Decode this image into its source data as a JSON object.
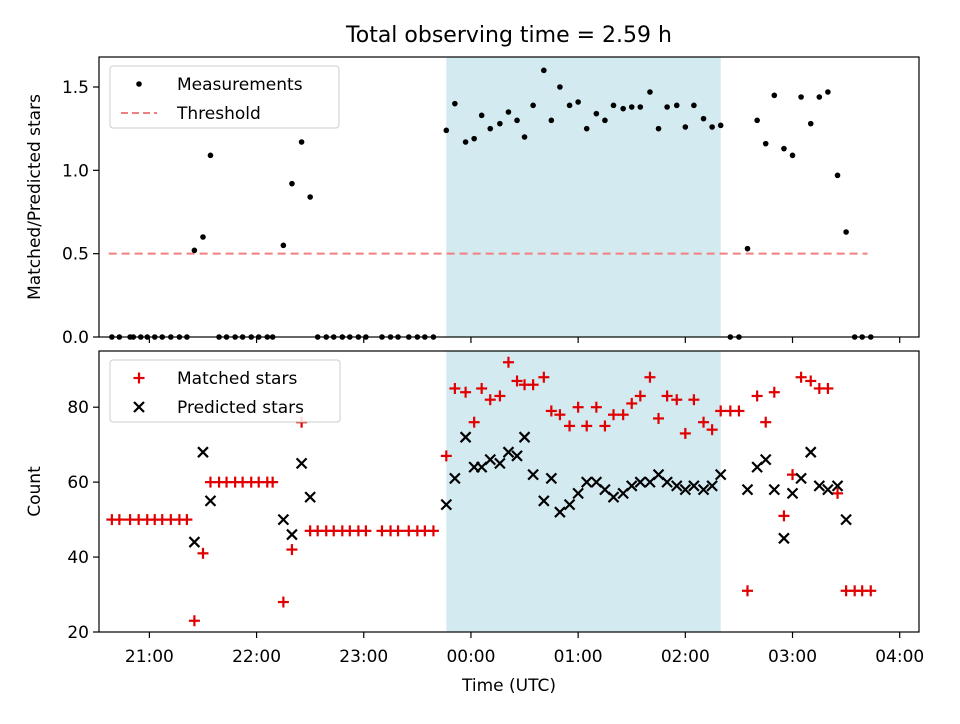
{
  "figure": {
    "title": "Total observing time = 2.59 h"
  },
  "chart_data": [
    {
      "type": "scatter",
      "ylabel": "Matched/Predicted stars",
      "xlabel": "",
      "xlim_hours": [
        20.53,
        28.18
      ],
      "ylim": [
        0,
        1.68
      ],
      "yticks": [
        0.0,
        0.5,
        1.0,
        1.5
      ],
      "yticklabels": [
        "0.0",
        "0.5",
        "1.0",
        "1.5"
      ],
      "shaded_span_hours": [
        23.77,
        26.33
      ],
      "shade_color": "#d4eaf1",
      "legend_location": "upper-left",
      "legend": [
        {
          "name": "Measurements",
          "marker": "dot",
          "color": "#000000"
        },
        {
          "name": "Threshold",
          "marker": "dashed-line",
          "color": "#f08080"
        }
      ],
      "threshold": {
        "value": 0.5,
        "x_hours": [
          20.62,
          27.7
        ],
        "color": "#f08080"
      },
      "series": [
        {
          "name": "Measurements",
          "color": "#000000",
          "points": [
            [
              20.65,
              0
            ],
            [
              20.72,
              0
            ],
            [
              20.82,
              0
            ],
            [
              20.85,
              0
            ],
            [
              20.92,
              0
            ],
            [
              20.98,
              0
            ],
            [
              21.05,
              0
            ],
            [
              21.12,
              0
            ],
            [
              21.2,
              0
            ],
            [
              21.28,
              0
            ],
            [
              21.35,
              0
            ],
            [
              21.42,
              0.52
            ],
            [
              21.5,
              0.6
            ],
            [
              21.57,
              1.09
            ],
            [
              21.65,
              0
            ],
            [
              21.72,
              0
            ],
            [
              21.8,
              0
            ],
            [
              21.87,
              0
            ],
            [
              21.95,
              0
            ],
            [
              22.02,
              0
            ],
            [
              22.1,
              0
            ],
            [
              22.15,
              0
            ],
            [
              22.25,
              0.55
            ],
            [
              22.33,
              0.92
            ],
            [
              22.42,
              1.17
            ],
            [
              22.5,
              0.84
            ],
            [
              22.57,
              0
            ],
            [
              22.65,
              0
            ],
            [
              22.72,
              0
            ],
            [
              22.8,
              0
            ],
            [
              22.87,
              0
            ],
            [
              22.95,
              0
            ],
            [
              23.02,
              0
            ],
            [
              23.17,
              0
            ],
            [
              23.25,
              0
            ],
            [
              23.32,
              0
            ],
            [
              23.42,
              0
            ],
            [
              23.5,
              0
            ],
            [
              23.57,
              0
            ],
            [
              23.65,
              0
            ],
            [
              23.77,
              1.24
            ],
            [
              23.85,
              1.4
            ],
            [
              23.95,
              1.17
            ],
            [
              24.03,
              1.19
            ],
            [
              24.1,
              1.33
            ],
            [
              24.18,
              1.25
            ],
            [
              24.27,
              1.28
            ],
            [
              24.35,
              1.35
            ],
            [
              24.43,
              1.3
            ],
            [
              24.5,
              1.2
            ],
            [
              24.58,
              1.39
            ],
            [
              24.68,
              1.6
            ],
            [
              24.75,
              1.3
            ],
            [
              24.83,
              1.5
            ],
            [
              24.92,
              1.39
            ],
            [
              25.0,
              1.41
            ],
            [
              25.08,
              1.25
            ],
            [
              25.17,
              1.34
            ],
            [
              25.25,
              1.3
            ],
            [
              25.33,
              1.39
            ],
            [
              25.42,
              1.37
            ],
            [
              25.5,
              1.38
            ],
            [
              25.58,
              1.38
            ],
            [
              25.67,
              1.47
            ],
            [
              25.75,
              1.25
            ],
            [
              25.83,
              1.38
            ],
            [
              25.92,
              1.39
            ],
            [
              26.0,
              1.26
            ],
            [
              26.08,
              1.39
            ],
            [
              26.17,
              1.31
            ],
            [
              26.25,
              1.26
            ],
            [
              26.33,
              1.27
            ],
            [
              26.42,
              0
            ],
            [
              26.5,
              0
            ],
            [
              26.58,
              0.53
            ],
            [
              26.67,
              1.3
            ],
            [
              26.75,
              1.16
            ],
            [
              26.83,
              1.45
            ],
            [
              26.92,
              1.13
            ],
            [
              27.0,
              1.09
            ],
            [
              27.08,
              1.44
            ],
            [
              27.17,
              1.28
            ],
            [
              27.25,
              1.44
            ],
            [
              27.33,
              1.47
            ],
            [
              27.42,
              0.97
            ],
            [
              27.5,
              0.63
            ],
            [
              27.58,
              0
            ],
            [
              27.65,
              0
            ],
            [
              27.73,
              0
            ]
          ]
        }
      ]
    },
    {
      "type": "scatter",
      "ylabel": "Count",
      "xlabel": "Time (UTC)",
      "xlim_hours": [
        20.53,
        28.18
      ],
      "ylim": [
        20,
        95
      ],
      "yticks": [
        20,
        40,
        60,
        80
      ],
      "yticklabels": [
        "20",
        "40",
        "60",
        "80"
      ],
      "xticks_hours": [
        21,
        22,
        23,
        24,
        25,
        26,
        27,
        28
      ],
      "xticklabels": [
        "21:00",
        "22:00",
        "23:00",
        "00:00",
        "01:00",
        "02:00",
        "03:00",
        "04:00"
      ],
      "shaded_span_hours": [
        23.77,
        26.33
      ],
      "shade_color": "#d4eaf1",
      "legend_location": "upper-left",
      "legend": [
        {
          "name": "Matched stars",
          "marker": "plus",
          "color": "#e00000"
        },
        {
          "name": "Predicted stars",
          "marker": "x",
          "color": "#000000"
        }
      ],
      "series": [
        {
          "name": "Matched stars",
          "marker": "plus",
          "color": "#e00000",
          "points": [
            [
              20.65,
              50
            ],
            [
              20.72,
              50
            ],
            [
              20.82,
              50
            ],
            [
              20.9,
              50
            ],
            [
              20.98,
              50
            ],
            [
              21.05,
              50
            ],
            [
              21.12,
              50
            ],
            [
              21.2,
              50
            ],
            [
              21.28,
              50
            ],
            [
              21.35,
              50
            ],
            [
              21.42,
              23
            ],
            [
              21.5,
              41
            ],
            [
              21.57,
              60
            ],
            [
              21.65,
              60
            ],
            [
              21.72,
              60
            ],
            [
              21.8,
              60
            ],
            [
              21.87,
              60
            ],
            [
              21.95,
              60
            ],
            [
              22.02,
              60
            ],
            [
              22.1,
              60
            ],
            [
              22.15,
              60
            ],
            [
              22.25,
              28
            ],
            [
              22.33,
              42
            ],
            [
              22.42,
              76
            ],
            [
              22.5,
              47
            ],
            [
              22.57,
              47
            ],
            [
              22.65,
              47
            ],
            [
              22.72,
              47
            ],
            [
              22.8,
              47
            ],
            [
              22.87,
              47
            ],
            [
              22.95,
              47
            ],
            [
              23.02,
              47
            ],
            [
              23.17,
              47
            ],
            [
              23.25,
              47
            ],
            [
              23.32,
              47
            ],
            [
              23.42,
              47
            ],
            [
              23.5,
              47
            ],
            [
              23.57,
              47
            ],
            [
              23.65,
              47
            ],
            [
              23.77,
              67
            ],
            [
              23.85,
              85
            ],
            [
              23.95,
              84
            ],
            [
              24.03,
              76
            ],
            [
              24.1,
              85
            ],
            [
              24.18,
              82
            ],
            [
              24.27,
              83
            ],
            [
              24.35,
              92
            ],
            [
              24.43,
              87
            ],
            [
              24.5,
              86
            ],
            [
              24.58,
              86
            ],
            [
              24.68,
              88
            ],
            [
              24.75,
              79
            ],
            [
              24.83,
              78
            ],
            [
              24.92,
              75
            ],
            [
              25.0,
              80
            ],
            [
              25.08,
              75
            ],
            [
              25.17,
              80
            ],
            [
              25.25,
              75
            ],
            [
              25.33,
              78
            ],
            [
              25.42,
              78
            ],
            [
              25.5,
              81
            ],
            [
              25.58,
              83
            ],
            [
              25.67,
              88
            ],
            [
              25.75,
              77
            ],
            [
              25.83,
              83
            ],
            [
              25.92,
              82
            ],
            [
              26.0,
              73
            ],
            [
              26.08,
              82
            ],
            [
              26.17,
              76
            ],
            [
              26.25,
              74
            ],
            [
              26.33,
              79
            ],
            [
              26.42,
              79
            ],
            [
              26.5,
              79
            ],
            [
              26.58,
              31
            ],
            [
              26.67,
              83
            ],
            [
              26.75,
              76
            ],
            [
              26.83,
              84
            ],
            [
              26.92,
              51
            ],
            [
              27.0,
              62
            ],
            [
              27.08,
              88
            ],
            [
              27.17,
              87
            ],
            [
              27.25,
              85
            ],
            [
              27.33,
              85
            ],
            [
              27.42,
              57
            ],
            [
              27.5,
              31
            ],
            [
              27.58,
              31
            ],
            [
              27.65,
              31
            ],
            [
              27.73,
              31
            ]
          ]
        },
        {
          "name": "Predicted stars",
          "marker": "x",
          "color": "#000000",
          "points": [
            [
              21.42,
              44
            ],
            [
              21.5,
              68
            ],
            [
              21.57,
              55
            ],
            [
              22.25,
              50
            ],
            [
              22.33,
              46
            ],
            [
              22.42,
              65
            ],
            [
              22.5,
              56
            ],
            [
              23.77,
              54
            ],
            [
              23.85,
              61
            ],
            [
              23.95,
              72
            ],
            [
              24.03,
              64
            ],
            [
              24.1,
              64
            ],
            [
              24.18,
              66
            ],
            [
              24.27,
              65
            ],
            [
              24.35,
              68
            ],
            [
              24.43,
              67
            ],
            [
              24.5,
              72
            ],
            [
              24.58,
              62
            ],
            [
              24.68,
              55
            ],
            [
              24.75,
              61
            ],
            [
              24.83,
              52
            ],
            [
              24.92,
              54
            ],
            [
              25.0,
              57
            ],
            [
              25.08,
              60
            ],
            [
              25.17,
              60
            ],
            [
              25.25,
              58
            ],
            [
              25.33,
              56
            ],
            [
              25.42,
              57
            ],
            [
              25.5,
              59
            ],
            [
              25.58,
              60
            ],
            [
              25.67,
              60
            ],
            [
              25.75,
              62
            ],
            [
              25.83,
              60
            ],
            [
              25.92,
              59
            ],
            [
              26.0,
              58
            ],
            [
              26.08,
              59
            ],
            [
              26.17,
              58
            ],
            [
              26.25,
              59
            ],
            [
              26.33,
              62
            ],
            [
              26.58,
              58
            ],
            [
              26.67,
              64
            ],
            [
              26.75,
              66
            ],
            [
              26.83,
              58
            ],
            [
              26.92,
              45
            ],
            [
              27.0,
              57
            ],
            [
              27.08,
              61
            ],
            [
              27.17,
              68
            ],
            [
              27.25,
              59
            ],
            [
              27.33,
              58
            ],
            [
              27.42,
              59
            ],
            [
              27.5,
              50
            ]
          ]
        }
      ]
    }
  ]
}
